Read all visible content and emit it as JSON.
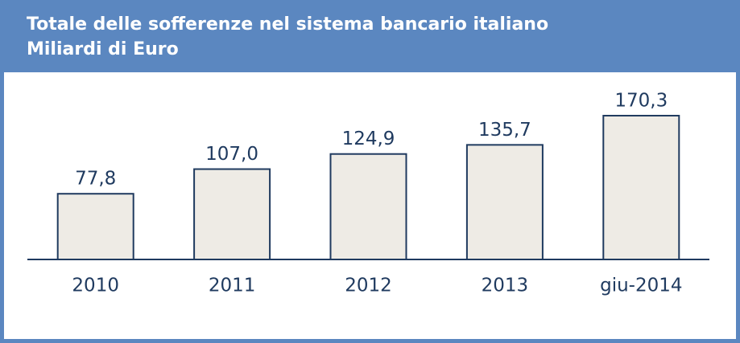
{
  "chart_data": {
    "type": "bar",
    "title": "Totale delle sofferenze nel sistema bancario italiano",
    "subtitle": "Miliardi di Euro",
    "categories": [
      "2010",
      "2011",
      "2012",
      "2013",
      "giu-2014"
    ],
    "values": [
      77.8,
      107.0,
      124.9,
      135.7,
      170.3
    ],
    "value_labels": [
      "77,8",
      "107,0",
      "124,9",
      "135,7",
      "170,3"
    ],
    "color": "#eeebe5",
    "ylim": [
      0,
      215
    ]
  }
}
